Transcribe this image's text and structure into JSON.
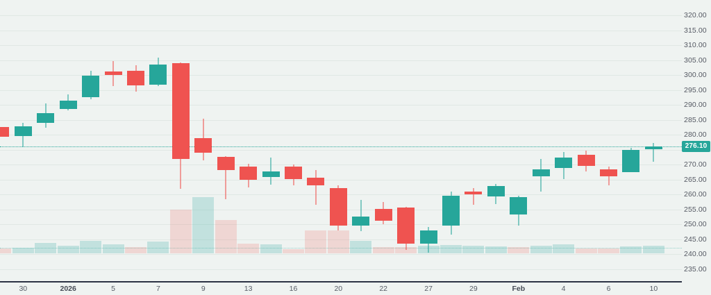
{
  "colors": {
    "background": "#eff3f1",
    "up": "#26a69a",
    "down": "#ef5350",
    "up_wick": "rgba(38,166,154,0.55)",
    "down_wick": "rgba(239,83,80,0.55)",
    "up_volume": "rgba(38,166,154,0.22)",
    "down_volume": "rgba(239,83,80,0.18)",
    "badge_bg": "#26a69a",
    "badge_text": "#ffffff",
    "axis_text": "#555963",
    "time_axis_line": "#2b3243",
    "current_price_line": "#26a69a"
  },
  "price_axis": {
    "tick_labels": [
      "320.00",
      "315.00",
      "310.00",
      "305.00",
      "300.00",
      "295.00",
      "290.00",
      "285.00",
      "280.00",
      "275.00",
      "270.00",
      "265.00",
      "260.00",
      "255.00",
      "250.00",
      "245.00",
      "240.00",
      "235.00"
    ],
    "current_price_label": "276.10"
  },
  "time_axis": {
    "labels": [
      {
        "text": "30",
        "candle": 1,
        "em": false
      },
      {
        "text": "2026",
        "candle": 3,
        "em": true
      },
      {
        "text": "5",
        "candle": 5,
        "em": false
      },
      {
        "text": "7",
        "candle": 7,
        "em": false
      },
      {
        "text": "9",
        "candle": 9,
        "em": false
      },
      {
        "text": "13",
        "candle": 11,
        "em": false
      },
      {
        "text": "16",
        "candle": 13,
        "em": false
      },
      {
        "text": "20",
        "candle": 15,
        "em": false
      },
      {
        "text": "22",
        "candle": 17,
        "em": false
      },
      {
        "text": "27",
        "candle": 19,
        "em": false
      },
      {
        "text": "29",
        "candle": 21,
        "em": false
      },
      {
        "text": "Feb",
        "candle": 23,
        "em": true
      },
      {
        "text": "4",
        "candle": 25,
        "em": false
      },
      {
        "text": "6",
        "candle": 27,
        "em": false
      },
      {
        "text": "10",
        "candle": 29,
        "em": false
      }
    ]
  },
  "chart_data": {
    "type": "candlestick",
    "subtype": "price_with_volume_overlay",
    "title": "",
    "price_axis_range": [
      235,
      320
    ],
    "price_tick_step": 5,
    "current_price": 276.1,
    "guide_level": 242.0,
    "legend_position": "none",
    "grid": "horizontal-only",
    "candles_ohlc": [
      [
        282.6,
        282.6,
        279.3,
        279.3
      ],
      [
        279.6,
        283.9,
        275.9,
        282.7
      ],
      [
        283.9,
        290.5,
        282.3,
        287.3
      ],
      [
        288.6,
        293.5,
        288.1,
        291.4
      ],
      [
        292.6,
        301.3,
        291.9,
        299.7
      ],
      [
        301.1,
        304.6,
        296.3,
        299.9
      ],
      [
        301.5,
        303.3,
        294.5,
        296.6
      ],
      [
        296.8,
        305.9,
        296.3,
        303.6
      ],
      [
        304.0,
        304.3,
        261.9,
        271.8
      ],
      [
        278.8,
        285.4,
        271.4,
        274.0
      ],
      [
        272.6,
        272.9,
        258.4,
        268.1
      ],
      [
        269.3,
        270.2,
        262.3,
        265.0
      ],
      [
        265.8,
        272.4,
        263.3,
        267.7
      ],
      [
        269.3,
        269.9,
        263.1,
        265.1
      ],
      [
        265.6,
        268.1,
        256.5,
        263.0
      ],
      [
        262.2,
        263.0,
        248.0,
        249.5
      ],
      [
        249.5,
        258.1,
        247.6,
        252.6
      ],
      [
        255.1,
        257.5,
        250.1,
        251.1
      ],
      [
        255.7,
        255.9,
        241.4,
        243.5
      ],
      [
        243.5,
        249.1,
        240.4,
        248.0
      ],
      [
        249.5,
        261.0,
        246.5,
        259.6
      ],
      [
        261.0,
        262.0,
        256.5,
        260.0
      ],
      [
        259.2,
        263.6,
        256.7,
        262.9
      ],
      [
        253.2,
        259.5,
        249.5,
        259.0
      ],
      [
        266.0,
        271.9,
        261.0,
        268.3
      ],
      [
        268.8,
        274.2,
        265.1,
        272.4
      ],
      [
        273.3,
        274.6,
        267.7,
        269.5
      ],
      [
        268.4,
        269.3,
        263.0,
        266.0
      ],
      [
        267.4,
        275.7,
        267.4,
        274.9
      ],
      [
        275.2,
        277.2,
        271.0,
        276.1
      ]
    ],
    "first_candle_clipped_at_left_edge": true,
    "volume_rel": [
      7,
      8,
      15,
      11,
      18,
      13,
      9,
      17,
      63,
      81,
      48,
      14,
      13,
      6,
      33,
      33,
      18,
      9,
      9,
      11,
      12,
      11,
      10,
      9,
      11,
      13,
      7,
      7,
      10,
      11
    ],
    "volume_dir": [
      "d",
      "u",
      "u",
      "u",
      "u",
      "u",
      "d",
      "u",
      "d",
      "u",
      "d",
      "d",
      "u",
      "d",
      "d",
      "d",
      "u",
      "d",
      "d",
      "u",
      "u",
      "u",
      "u",
      "d",
      "u",
      "u",
      "d",
      "d",
      "u",
      "u"
    ]
  }
}
